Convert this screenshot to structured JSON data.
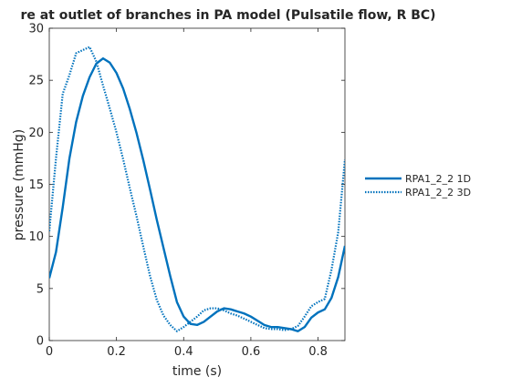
{
  "chart_data": {
    "type": "line",
    "title": "re at outlet of branches in PA model (Pulsatile flow, R BC)",
    "xlabel": "time (s)",
    "ylabel": "pressure (mmHg)",
    "xlim": [
      0,
      0.88
    ],
    "ylim": [
      0,
      30
    ],
    "xticks": [
      0,
      0.2,
      0.4,
      0.6,
      0.8
    ],
    "xtick_labels": [
      "0",
      "0.2",
      "0.4",
      "0.6",
      "0.8"
    ],
    "yticks": [
      0,
      5,
      10,
      15,
      20,
      25,
      30
    ],
    "ytick_labels": [
      "0",
      "5",
      "10",
      "15",
      "20",
      "25",
      "30"
    ],
    "grid": false,
    "legend_position": "outside-right",
    "series": [
      {
        "name": "RPA1_2_2 1D",
        "color": "#0072BD",
        "style": "solid",
        "x": [
          0,
          0.02,
          0.04,
          0.06,
          0.08,
          0.1,
          0.12,
          0.14,
          0.16,
          0.18,
          0.2,
          0.22,
          0.24,
          0.26,
          0.28,
          0.3,
          0.32,
          0.34,
          0.36,
          0.38,
          0.4,
          0.42,
          0.44,
          0.46,
          0.48,
          0.5,
          0.52,
          0.54,
          0.56,
          0.58,
          0.6,
          0.62,
          0.64,
          0.66,
          0.68,
          0.7,
          0.72,
          0.74,
          0.76,
          0.78,
          0.8,
          0.82,
          0.84,
          0.86,
          0.88
        ],
        "y": [
          6.0,
          8.5,
          12.8,
          17.5,
          21.0,
          23.5,
          25.3,
          26.6,
          27.1,
          26.7,
          25.7,
          24.2,
          22.2,
          19.9,
          17.3,
          14.5,
          11.6,
          8.9,
          6.2,
          3.7,
          2.3,
          1.6,
          1.5,
          1.8,
          2.3,
          2.8,
          3.1,
          3.0,
          2.8,
          2.6,
          2.3,
          1.9,
          1.5,
          1.3,
          1.3,
          1.2,
          1.1,
          0.9,
          1.3,
          2.2,
          2.7,
          3.0,
          4.1,
          6.1,
          9.1
        ]
      },
      {
        "name": "RPA1_2_2 3D",
        "color": "#0072BD",
        "style": "dotted",
        "x": [
          0,
          0.02,
          0.04,
          0.06,
          0.08,
          0.1,
          0.12,
          0.14,
          0.16,
          0.18,
          0.2,
          0.22,
          0.24,
          0.26,
          0.28,
          0.3,
          0.32,
          0.34,
          0.36,
          0.38,
          0.4,
          0.42,
          0.44,
          0.46,
          0.48,
          0.5,
          0.52,
          0.54,
          0.56,
          0.58,
          0.6,
          0.62,
          0.64,
          0.66,
          0.68,
          0.7,
          0.72,
          0.74,
          0.76,
          0.78,
          0.8,
          0.82,
          0.84,
          0.86,
          0.88
        ],
        "y": [
          10.5,
          17.5,
          23.7,
          25.5,
          27.6,
          27.9,
          28.2,
          26.8,
          24.5,
          22.3,
          20.0,
          17.4,
          14.6,
          11.9,
          9.0,
          6.2,
          3.9,
          2.4,
          1.5,
          0.9,
          1.3,
          1.8,
          2.3,
          2.9,
          3.1,
          3.1,
          2.9,
          2.6,
          2.4,
          2.1,
          1.8,
          1.5,
          1.2,
          1.1,
          1.1,
          1.0,
          1.1,
          1.4,
          2.3,
          3.3,
          3.7,
          4.0,
          6.8,
          10.4,
          17.4
        ]
      }
    ]
  }
}
